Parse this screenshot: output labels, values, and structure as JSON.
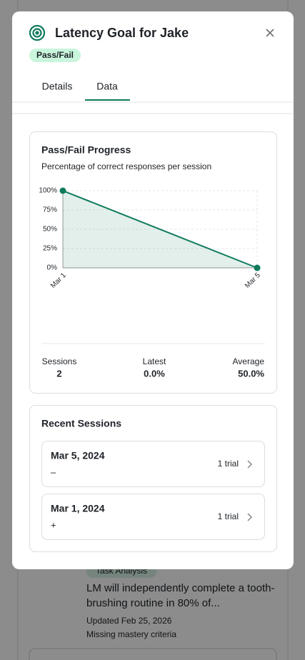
{
  "modal": {
    "title": "Latency Goal for Jake",
    "tag": "Pass/Fail",
    "tabs": [
      "Details",
      "Data"
    ],
    "active_tab": 1
  },
  "chart_data": {
    "type": "line",
    "title": "Pass/Fail Progress",
    "subtitle": "Percentage of correct responses per session",
    "categories": [
      "Mar 1",
      "Mar 5"
    ],
    "values": [
      100,
      0
    ],
    "color": "#0e7a5c",
    "fill": true,
    "ylim": [
      0,
      100
    ],
    "yticks": [
      {
        "value": 0,
        "label": "0%"
      },
      {
        "value": 25,
        "label": "25%"
      },
      {
        "value": 50,
        "label": "50%"
      },
      {
        "value": 75,
        "label": "75%"
      },
      {
        "value": 100,
        "label": "100%"
      }
    ],
    "grid": true
  },
  "stats": [
    {
      "label": "Sessions",
      "value": "2"
    },
    {
      "label": "Latest",
      "value": "0.0%"
    },
    {
      "label": "Average",
      "value": "50.0%"
    }
  ],
  "recent": {
    "title": "Recent Sessions",
    "sessions": [
      {
        "date": "Mar 5, 2024",
        "result": "–",
        "trials": "1 trial"
      },
      {
        "date": "Mar 1, 2024",
        "result": "+",
        "trials": "1 trial"
      }
    ]
  },
  "background_item": {
    "tag": "Task Analysis",
    "text_lines": [
      "LM will independently complete a tooth-",
      "brushing routine in 80% of..."
    ],
    "updated": "Updated Feb 25, 2026",
    "warning": "Missing mastery criteria"
  }
}
